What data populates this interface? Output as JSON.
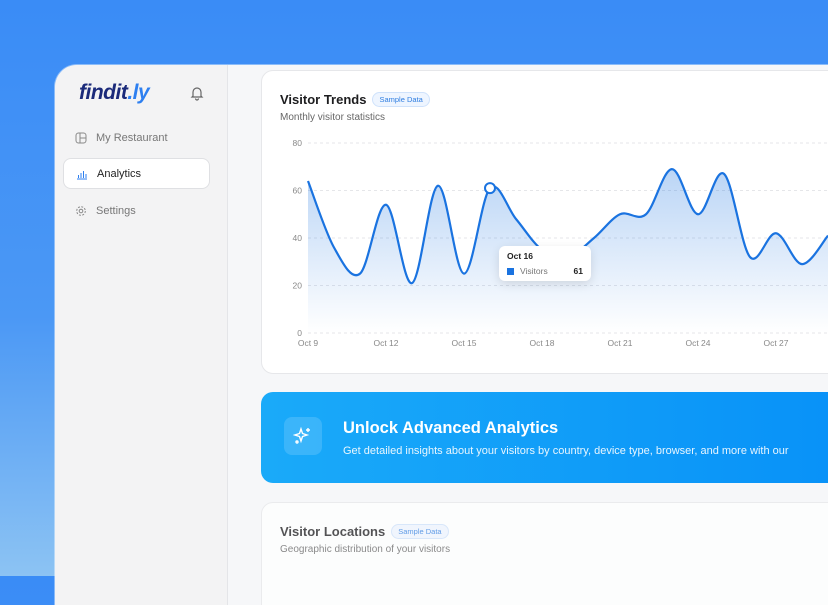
{
  "sidebar": {
    "logo_main": "findit",
    "logo_suffix": ".ly",
    "items": [
      {
        "label": "My Restaurant",
        "icon": "layout-icon"
      },
      {
        "label": "Analytics",
        "icon": "bar-chart-icon",
        "active": true
      },
      {
        "label": "Settings",
        "icon": "gear-icon"
      }
    ]
  },
  "visitor_trends": {
    "title": "Visitor Trends",
    "badge": "Sample Data",
    "subtitle": "Monthly visitor statistics",
    "tooltip": {
      "date": "Oct 16",
      "series": "Visitors",
      "value": "61"
    }
  },
  "banner": {
    "title": "Unlock Advanced Analytics",
    "text": "Get detailed insights about your visitors by country, device type, browser, and more with our"
  },
  "visitor_locations": {
    "title": "Visitor Locations",
    "badge": "Sample Data",
    "subtitle": "Geographic distribution of your visitors"
  },
  "chart_data": {
    "type": "area",
    "series": [
      {
        "name": "Visitors",
        "values": [
          64,
          36,
          25,
          54,
          21,
          62,
          25,
          61,
          48,
          35,
          32,
          40,
          50,
          50,
          69,
          50,
          67,
          32,
          42,
          29,
          41
        ]
      }
    ],
    "x": [
      "Oct 9",
      "Oct 10",
      "Oct 11",
      "Oct 12",
      "Oct 13",
      "Oct 14",
      "Oct 15",
      "Oct 16",
      "Oct 17",
      "Oct 18",
      "Oct 19",
      "Oct 20",
      "Oct 21",
      "Oct 22",
      "Oct 23",
      "Oct 24",
      "Oct 25",
      "Oct 26",
      "Oct 27",
      "Oct 28",
      "Oct 29"
    ],
    "x_ticks": [
      "Oct 9",
      "Oct 12",
      "Oct 15",
      "Oct 18",
      "Oct 21",
      "Oct 24",
      "Oct 27"
    ],
    "y_ticks": [
      "0",
      "20",
      "40",
      "60",
      "80"
    ],
    "ylim": [
      0,
      80
    ],
    "grid": true,
    "color": "#1a73e0",
    "highlight": "Oct 16"
  }
}
